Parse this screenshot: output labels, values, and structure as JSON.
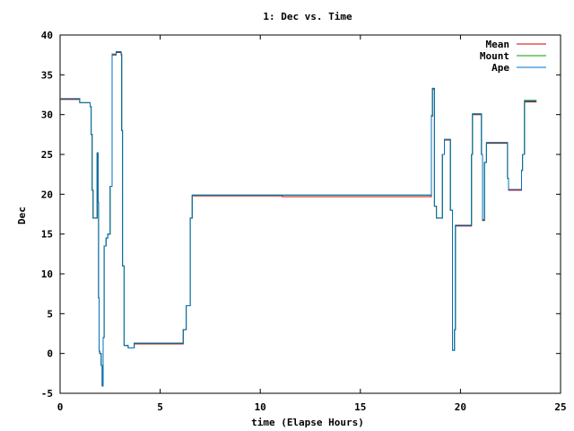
{
  "chart_data": {
    "type": "line",
    "title": "1: Dec vs. Time",
    "xlabel": "time (Elapse Hours)",
    "ylabel": "Dec",
    "xlim": [
      0,
      25
    ],
    "ylim": [
      -5,
      40
    ],
    "x_ticks": [
      "0",
      "5",
      "10",
      "15",
      "20",
      "25"
    ],
    "y_ticks": [
      "-5",
      "0",
      "5",
      "10",
      "15",
      "20",
      "25",
      "30",
      "35",
      "40"
    ],
    "grid": false,
    "legend_position": "top-right",
    "series": [
      {
        "name": "Mean",
        "color": "#cc0000",
        "x": [
          0.0,
          0.95,
          0.98,
          1.5,
          1.55,
          1.6,
          1.65,
          1.75,
          1.85,
          1.9,
          1.92,
          1.95,
          1.98,
          2.05,
          2.1,
          2.15,
          2.2,
          2.3,
          2.38,
          2.42,
          2.5,
          2.6,
          2.7,
          2.8,
          2.9,
          3.0,
          3.05,
          3.08,
          3.12,
          3.2,
          3.4,
          3.7,
          3.9,
          3.95,
          4.0,
          4.05,
          4.1,
          4.15,
          4.2,
          4.3,
          4.4,
          6.1,
          6.15,
          6.3,
          6.4,
          6.5,
          6.6,
          11.0,
          11.1,
          18.5,
          18.55,
          18.6,
          18.7,
          18.8,
          18.9,
          19.0,
          19.1,
          19.2,
          19.3,
          19.4,
          19.5,
          19.6,
          19.65,
          19.7,
          19.75,
          19.8,
          19.9,
          20.0,
          20.5,
          20.55,
          20.6,
          21.0,
          21.05,
          21.1,
          21.15,
          21.2,
          21.3,
          21.4,
          21.5,
          22.3,
          22.35,
          22.4,
          22.5,
          23.0,
          23.05,
          23.1,
          23.2,
          23.8
        ],
        "y": [
          31.9,
          31.9,
          31.5,
          31.0,
          27.5,
          20.5,
          17.0,
          17.0,
          25.1,
          19.0,
          7.0,
          0.3,
          0.0,
          -1.5,
          -4.0,
          2.0,
          13.5,
          14.5,
          15.0,
          15.0,
          21.0,
          37.5,
          37.5,
          37.8,
          37.8,
          37.8,
          37.5,
          28.0,
          11.0,
          1.0,
          0.7,
          1.2,
          1.2,
          1.2,
          1.2,
          1.2,
          1.2,
          1.2,
          1.2,
          1.2,
          1.2,
          1.2,
          3.0,
          6.0,
          6.0,
          17.0,
          19.8,
          19.8,
          19.7,
          19.7,
          29.8,
          33.2,
          18.5,
          17.0,
          17.0,
          17.0,
          25.0,
          26.8,
          26.8,
          26.8,
          18.0,
          0.4,
          0.4,
          3.0,
          16.0,
          16.0,
          16.0,
          16.0,
          16.0,
          25.0,
          30.0,
          30.0,
          25.0,
          16.7,
          16.7,
          24.0,
          26.4,
          26.4,
          26.4,
          26.4,
          22.0,
          20.5,
          20.5,
          20.5,
          23.0,
          25.0,
          31.6,
          31.6
        ]
      },
      {
        "name": "Mount",
        "color": "#00a000",
        "x": [
          0.0,
          0.95,
          0.98,
          1.5,
          1.55,
          1.6,
          1.65,
          1.75,
          1.85,
          1.9,
          1.92,
          1.95,
          1.98,
          2.05,
          2.1,
          2.15,
          2.2,
          2.3,
          2.38,
          2.42,
          2.5,
          2.6,
          2.7,
          2.8,
          2.9,
          3.0,
          3.05,
          3.08,
          3.12,
          3.2,
          3.4,
          3.7,
          3.9,
          3.95,
          4.0,
          4.05,
          4.1,
          4.15,
          4.2,
          4.3,
          4.4,
          6.1,
          6.15,
          6.3,
          6.4,
          6.5,
          6.6,
          11.0,
          11.1,
          18.5,
          18.55,
          18.6,
          18.7,
          18.8,
          18.9,
          19.0,
          19.1,
          19.2,
          19.3,
          19.4,
          19.5,
          19.6,
          19.65,
          19.7,
          19.75,
          19.8,
          19.9,
          20.0,
          20.5,
          20.55,
          20.6,
          21.0,
          21.05,
          21.1,
          21.15,
          21.2,
          21.3,
          21.4,
          21.5,
          22.3,
          22.35,
          22.4,
          22.5,
          23.0,
          23.05,
          23.1,
          23.2,
          23.8
        ],
        "y": [
          32.0,
          32.0,
          31.5,
          31.0,
          27.5,
          20.5,
          17.0,
          17.0,
          25.2,
          19.0,
          7.0,
          0.3,
          0.0,
          -1.5,
          -4.1,
          2.0,
          13.5,
          14.5,
          15.0,
          15.0,
          21.0,
          37.6,
          37.6,
          37.9,
          37.9,
          37.9,
          37.6,
          28.0,
          11.0,
          1.0,
          0.7,
          1.3,
          1.3,
          1.3,
          1.3,
          1.3,
          1.3,
          1.3,
          1.3,
          1.3,
          1.3,
          1.3,
          3.0,
          6.0,
          6.0,
          17.0,
          19.9,
          19.9,
          19.9,
          19.9,
          29.9,
          33.3,
          18.5,
          17.0,
          17.0,
          17.0,
          25.0,
          26.9,
          26.9,
          26.9,
          18.0,
          0.4,
          0.4,
          3.0,
          16.1,
          16.1,
          16.1,
          16.1,
          16.1,
          25.0,
          30.1,
          30.1,
          25.0,
          16.8,
          16.8,
          24.0,
          26.5,
          26.5,
          26.5,
          26.5,
          22.0,
          20.6,
          20.6,
          20.6,
          23.0,
          25.0,
          31.8,
          31.8
        ]
      },
      {
        "name": "Ape",
        "color": "#0070c0",
        "x": [
          0.0,
          0.95,
          0.98,
          1.5,
          1.55,
          1.6,
          1.65,
          1.75,
          1.85,
          1.9,
          1.92,
          1.95,
          1.98,
          2.05,
          2.1,
          2.15,
          2.2,
          2.3,
          2.38,
          2.42,
          2.5,
          2.6,
          2.7,
          2.8,
          2.9,
          3.0,
          3.05,
          3.08,
          3.12,
          3.2,
          3.4,
          3.7,
          3.9,
          3.95,
          4.0,
          4.05,
          4.1,
          4.15,
          4.2,
          4.3,
          4.4,
          6.1,
          6.15,
          6.3,
          6.4,
          6.5,
          6.6,
          11.0,
          11.1,
          18.5,
          18.55,
          18.6,
          18.7,
          18.8,
          18.9,
          19.0,
          19.1,
          19.2,
          19.3,
          19.4,
          19.5,
          19.6,
          19.65,
          19.7,
          19.75,
          19.8,
          19.9,
          20.0,
          20.5,
          20.55,
          20.6,
          21.0,
          21.05,
          21.1,
          21.15,
          21.2,
          21.3,
          21.4,
          21.5,
          22.3,
          22.35,
          22.4,
          22.5,
          23.0,
          23.05,
          23.1,
          23.2,
          23.8
        ],
        "y": [
          32.0,
          32.0,
          31.5,
          31.0,
          27.5,
          20.5,
          17.0,
          17.0,
          25.2,
          19.0,
          7.0,
          0.3,
          0.0,
          -1.5,
          -4.1,
          2.0,
          13.5,
          14.5,
          15.0,
          15.0,
          21.0,
          37.6,
          37.6,
          37.9,
          37.9,
          37.9,
          37.6,
          28.0,
          11.0,
          1.0,
          0.7,
          1.3,
          1.3,
          1.3,
          1.3,
          1.3,
          1.3,
          1.3,
          1.3,
          1.3,
          1.3,
          1.3,
          3.0,
          6.0,
          6.0,
          17.0,
          19.9,
          19.9,
          19.9,
          19.9,
          29.9,
          33.3,
          18.5,
          17.0,
          17.0,
          17.0,
          25.0,
          26.9,
          26.9,
          26.9,
          18.0,
          0.4,
          0.4,
          3.0,
          16.1,
          16.1,
          16.1,
          16.1,
          16.1,
          25.0,
          30.1,
          30.1,
          25.0,
          16.8,
          16.8,
          24.0,
          26.5,
          26.5,
          26.5,
          26.5,
          22.0,
          20.6,
          20.6,
          20.6,
          23.0,
          25.0,
          31.7,
          31.7
        ]
      }
    ]
  }
}
